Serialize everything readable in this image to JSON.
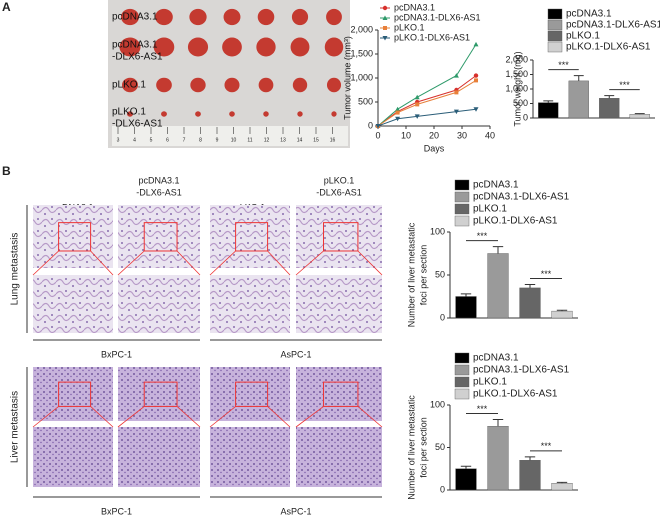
{
  "figure": {
    "panel_labels": [
      "A",
      "B"
    ],
    "tumor_rows": [
      [
        "pcDNA3.1"
      ],
      [
        "pcDNA3.1",
        "-DLX6-AS1"
      ],
      [
        "pLKO.1"
      ],
      [
        "pLKO.1",
        "-DLX6-AS1"
      ]
    ],
    "ruler_numbers": [
      3,
      4,
      5,
      6,
      7,
      8,
      9,
      10,
      11,
      12,
      13,
      14,
      15,
      16
    ],
    "group_headers": [
      [
        "pcDNA3.1"
      ],
      [
        "pcDNA3.1",
        "-DLX6-AS1"
      ],
      [
        "pLKO.1"
      ],
      [
        "pLKO.1",
        "-DLX6-AS1"
      ]
    ],
    "row_labels": [
      "Lung metastasis",
      "Liver metastasis"
    ],
    "cell_lines": [
      "BxPC-1",
      "AsPC-1",
      "BxPC-1",
      "AsPC-1"
    ]
  },
  "chart_data": [
    {
      "type": "line",
      "xlabel": "Days",
      "ylabel": "Tumor volume (mm³)",
      "x": [
        0,
        7,
        14,
        28,
        35
      ],
      "xlim": [
        0,
        40
      ],
      "xticks": [
        0,
        10,
        20,
        30,
        40
      ],
      "ylim": [
        0,
        2000
      ],
      "yticks": [
        0,
        500,
        {
          "value": 1000,
          "label": "1,000"
        },
        {
          "value": 1500,
          "label": "1,500"
        },
        {
          "value": 2000,
          "label": "2,000"
        }
      ],
      "series": [
        {
          "name": "pcDNA3.1",
          "color": "#d7312c",
          "values": [
            0,
            300,
            500,
            750,
            1050
          ]
        },
        {
          "name": "pcDNA3.1-DLX6-AS1",
          "color": "#2e9a6a",
          "values": [
            0,
            350,
            600,
            1050,
            1700
          ]
        },
        {
          "name": "pLKO.1",
          "color": "#e8803a",
          "values": [
            0,
            280,
            450,
            700,
            950
          ]
        },
        {
          "name": "pLKO.1-DLX6-AS1",
          "color": "#2a5d78",
          "values": [
            0,
            150,
            200,
            300,
            350
          ]
        }
      ]
    },
    {
      "type": "bar",
      "ylabel": [
        "Tumor weight (mg)"
      ],
      "ylim": [
        0,
        2000
      ],
      "yticks": [
        0,
        500,
        {
          "value": 1000,
          "label": "1,000"
        },
        {
          "value": 1500,
          "label": "1,500"
        },
        {
          "value": 2000,
          "label": "2,000"
        }
      ],
      "annotations": [
        "***",
        "***"
      ],
      "series": [
        {
          "name": "pcDNA3.1",
          "color": "#000000",
          "values": [
            530
          ],
          "errors": [
            60
          ]
        },
        {
          "name": "pcDNA3.1-DLX6-AS1",
          "color": "#9a9a9a",
          "values": [
            1280
          ],
          "errors": [
            180
          ]
        },
        {
          "name": "pLKO.1",
          "color": "#666666",
          "values": [
            680
          ],
          "errors": [
            90
          ]
        },
        {
          "name": "pLKO.1-DLX6-AS1",
          "color": "#d0d0d0",
          "values": [
            130
          ],
          "errors": [
            20
          ]
        }
      ]
    },
    {
      "type": "bar",
      "ylabel": [
        "Number of liver metastatic",
        "foci per section"
      ],
      "ylim": [
        0,
        100
      ],
      "yticks": [
        0,
        50,
        100
      ],
      "annotations": [
        "***",
        "***"
      ],
      "series": [
        {
          "name": "pcDNA3.1",
          "color": "#000000",
          "values": [
            25
          ],
          "errors": [
            3
          ]
        },
        {
          "name": "pcDNA3.1-DLX6-AS1",
          "color": "#9a9a9a",
          "values": [
            75
          ],
          "errors": [
            8
          ]
        },
        {
          "name": "pLKO.1",
          "color": "#666666",
          "values": [
            35
          ],
          "errors": [
            4
          ]
        },
        {
          "name": "pLKO.1-DLX6-AS1",
          "color": "#d0d0d0",
          "values": [
            8
          ],
          "errors": [
            1
          ]
        }
      ]
    },
    {
      "type": "bar",
      "ylabel": [
        "Number of liver metastatic",
        "foci per section"
      ],
      "ylim": [
        0,
        100
      ],
      "yticks": [
        0,
        50,
        100
      ],
      "annotations": [
        "***",
        "***"
      ],
      "series": [
        {
          "name": "pcDNA3.1",
          "color": "#000000",
          "values": [
            25
          ],
          "errors": [
            3
          ]
        },
        {
          "name": "pcDNA3.1-DLX6-AS1",
          "color": "#9a9a9a",
          "values": [
            75
          ],
          "errors": [
            8
          ]
        },
        {
          "name": "pLKO.1",
          "color": "#666666",
          "values": [
            35
          ],
          "errors": [
            4
          ]
        },
        {
          "name": "pLKO.1-DLX6-AS1",
          "color": "#d0d0d0",
          "values": [
            8
          ],
          "errors": [
            1
          ]
        }
      ]
    }
  ]
}
